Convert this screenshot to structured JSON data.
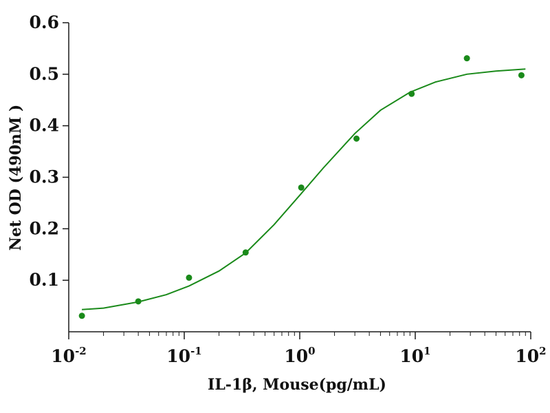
{
  "chart_data": {
    "type": "scatter",
    "xlabel": "IL-1β, Mouse(pg/mL)",
    "ylabel": "Net OD (490nM )",
    "x_scale": "log",
    "xlim": [
      0.01,
      100
    ],
    "ylim": [
      0,
      0.6
    ],
    "grid": false,
    "x_ticks": [
      {
        "base": "10",
        "exp": "-2",
        "value": 0.01
      },
      {
        "base": "10",
        "exp": "-1",
        "value": 0.1
      },
      {
        "base": "10",
        "exp": "0",
        "value": 1
      },
      {
        "base": "10",
        "exp": "1",
        "value": 10
      },
      {
        "base": "10",
        "exp": "2",
        "value": 100
      }
    ],
    "y_ticks": [
      "0.1",
      "0.2",
      "0.3",
      "0.4",
      "0.5",
      "0.6"
    ],
    "series": [
      {
        "color": "#1a8a1a",
        "points": [
          {
            "x": 0.013,
            "y": 0.031
          },
          {
            "x": 0.04,
            "y": 0.059
          },
          {
            "x": 0.11,
            "y": 0.105
          },
          {
            "x": 0.34,
            "y": 0.154
          },
          {
            "x": 1.03,
            "y": 0.28
          },
          {
            "x": 3.1,
            "y": 0.375
          },
          {
            "x": 9.3,
            "y": 0.462
          },
          {
            "x": 28,
            "y": 0.531
          },
          {
            "x": 83,
            "y": 0.498
          }
        ],
        "fit_curve": [
          {
            "x": 0.013,
            "y": 0.043
          },
          {
            "x": 0.02,
            "y": 0.046
          },
          {
            "x": 0.04,
            "y": 0.058
          },
          {
            "x": 0.07,
            "y": 0.072
          },
          {
            "x": 0.11,
            "y": 0.089
          },
          {
            "x": 0.2,
            "y": 0.118
          },
          {
            "x": 0.34,
            "y": 0.153
          },
          {
            "x": 0.6,
            "y": 0.208
          },
          {
            "x": 1.0,
            "y": 0.265
          },
          {
            "x": 1.6,
            "y": 0.318
          },
          {
            "x": 3.0,
            "y": 0.385
          },
          {
            "x": 5.0,
            "y": 0.43
          },
          {
            "x": 9.0,
            "y": 0.465
          },
          {
            "x": 15,
            "y": 0.485
          },
          {
            "x": 28,
            "y": 0.5
          },
          {
            "x": 50,
            "y": 0.506
          },
          {
            "x": 90,
            "y": 0.51
          }
        ]
      }
    ]
  }
}
